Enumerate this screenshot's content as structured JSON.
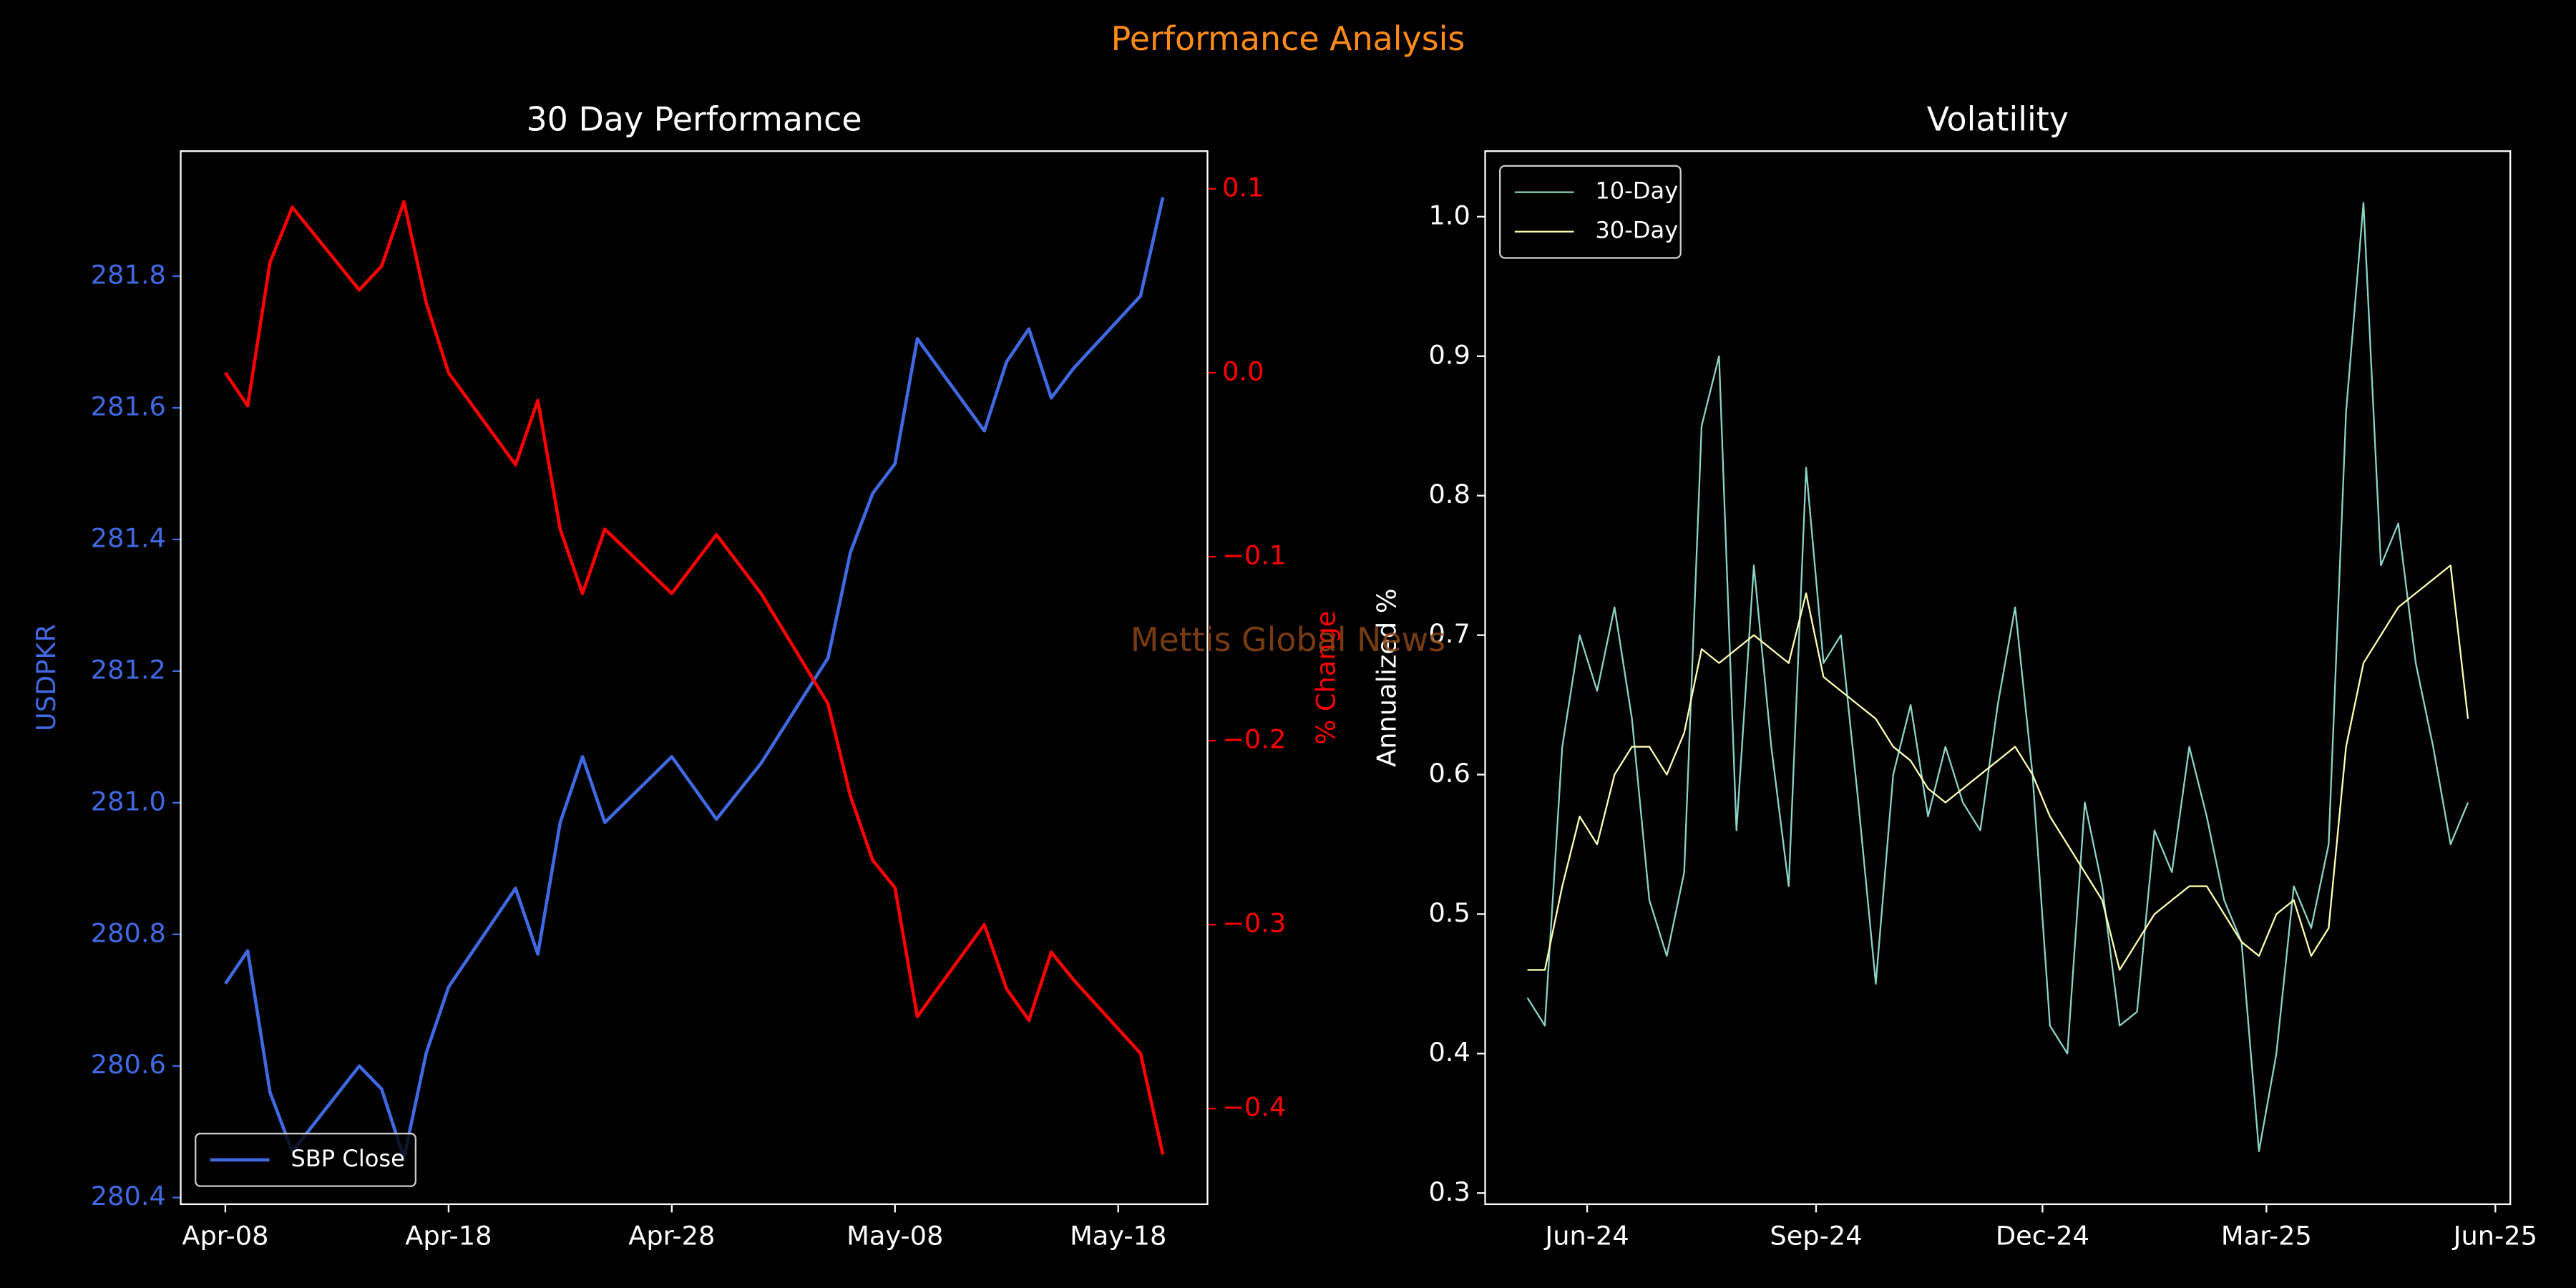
{
  "title": "Performance Analysis",
  "watermark": "Mettis Global News",
  "chart_data": [
    {
      "type": "line",
      "title": "30 Day Performance",
      "ylabel": "USDPKR",
      "y2label": "% Change",
      "legend": "lower left",
      "x": [
        "Apr-08",
        "Apr-09",
        "Apr-10",
        "Apr-11",
        "Apr-14",
        "Apr-15",
        "Apr-16",
        "Apr-17",
        "Apr-18",
        "Apr-21",
        "Apr-22",
        "Apr-23",
        "Apr-24",
        "Apr-25",
        "Apr-28",
        "Apr-30",
        "May-02",
        "May-05",
        "May-06",
        "May-07",
        "May-08",
        "May-09",
        "May-12",
        "May-13",
        "May-14",
        "May-15",
        "May-16",
        "May-19",
        "May-20"
      ],
      "series": [
        {
          "name": "SBP Close",
          "color": "#4169e1",
          "values": [
            280.725,
            280.775,
            280.56,
            280.47,
            280.6,
            280.565,
            280.46,
            280.62,
            280.72,
            280.87,
            280.77,
            280.97,
            281.07,
            280.97,
            281.07,
            280.975,
            281.06,
            281.22,
            281.38,
            281.47,
            281.515,
            281.705,
            281.565,
            281.67,
            281.72,
            281.615,
            281.66,
            281.77,
            281.92
          ]
        },
        {
          "color": "#ff0000",
          "axis": "y2",
          "values": [
            0.0,
            -0.018,
            0.06,
            0.09,
            0.045,
            0.058,
            0.093,
            0.038,
            0.0,
            -0.05,
            -0.015,
            -0.085,
            -0.12,
            -0.085,
            -0.12,
            -0.088,
            -0.12,
            -0.18,
            -0.23,
            -0.265,
            -0.28,
            -0.35,
            -0.3,
            -0.335,
            -0.352,
            -0.315,
            -0.33,
            -0.37,
            -0.425
          ]
        }
      ],
      "xlim": [
        "Apr-06",
        "May-22"
      ],
      "xticks": [
        "Apr-08",
        "Apr-18",
        "Apr-28",
        "May-08",
        "May-18"
      ],
      "ylim": [
        280.39,
        281.99
      ],
      "yticks": [
        280.4,
        280.6,
        280.8,
        {
          "value": 281,
          "label": "281.0"
        },
        281.2,
        281.4,
        281.6,
        281.8
      ],
      "y2lim": [
        -0.452,
        0.1205
      ],
      "y2ticks": [
        0.1,
        {
          "value": 0,
          "label": "0.0"
        },
        {
          "value": -0.1,
          "label": "−0.1"
        },
        {
          "value": -0.2,
          "label": "−0.2"
        },
        {
          "value": -0.3,
          "label": "−0.3"
        },
        {
          "value": -0.4,
          "label": "−0.4"
        }
      ]
    },
    {
      "type": "line",
      "title": "Volatility",
      "ylabel": "Annualized %",
      "legend": "upper left",
      "x": [
        "2024-05-08",
        "2024-05-15",
        "2024-05-22",
        "2024-05-29",
        "2024-06-05",
        "2024-06-12",
        "2024-06-19",
        "2024-06-26",
        "2024-07-03",
        "2024-07-10",
        "2024-07-17",
        "2024-07-24",
        "2024-07-31",
        "2024-08-07",
        "2024-08-14",
        "2024-08-21",
        "2024-08-28",
        "2024-09-04",
        "2024-09-11",
        "2024-09-18",
        "2024-09-25",
        "2024-10-02",
        "2024-10-09",
        "2024-10-16",
        "2024-10-23",
        "2024-10-30",
        "2024-11-06",
        "2024-11-13",
        "2024-11-20",
        "2024-11-27",
        "2024-12-04",
        "2024-12-11",
        "2024-12-18",
        "2024-12-25",
        "2025-01-01",
        "2025-01-08",
        "2025-01-15",
        "2025-01-22",
        "2025-01-29",
        "2025-02-05",
        "2025-02-12",
        "2025-02-19",
        "2025-02-26",
        "2025-03-05",
        "2025-03-12",
        "2025-03-19",
        "2025-03-26",
        "2025-04-02",
        "2025-04-09",
        "2025-04-16",
        "2025-04-23",
        "2025-04-30",
        "2025-05-07",
        "2025-05-14",
        "2025-05-21"
      ],
      "series": [
        {
          "name": "10-Day",
          "color": "#8dd3c7",
          "values": [
            0.44,
            0.42,
            0.62,
            0.7,
            0.66,
            0.72,
            0.64,
            0.51,
            0.47,
            0.53,
            0.85,
            0.9,
            0.56,
            0.75,
            0.62,
            0.52,
            0.82,
            0.68,
            0.7,
            0.58,
            0.45,
            0.6,
            0.65,
            0.57,
            0.62,
            0.58,
            0.56,
            0.65,
            0.72,
            0.6,
            0.42,
            0.4,
            0.58,
            0.52,
            0.42,
            0.43,
            0.56,
            0.53,
            0.62,
            0.57,
            0.51,
            0.48,
            0.33,
            0.4,
            0.52,
            0.49,
            0.55,
            0.86,
            1.01,
            0.75,
            0.78,
            0.68,
            0.62,
            0.55,
            0.58
          ]
        },
        {
          "name": "30-Day",
          "color": "#ffffb3",
          "values": [
            0.46,
            0.46,
            0.52,
            0.57,
            0.55,
            0.6,
            0.62,
            0.62,
            0.6,
            0.63,
            0.69,
            0.68,
            0.69,
            0.7,
            0.69,
            0.68,
            0.73,
            0.67,
            0.66,
            0.65,
            0.64,
            0.62,
            0.61,
            0.59,
            0.58,
            0.59,
            0.6,
            0.61,
            0.62,
            0.6,
            0.57,
            0.55,
            0.53,
            0.51,
            0.46,
            0.48,
            0.5,
            0.51,
            0.52,
            0.52,
            0.5,
            0.48,
            0.47,
            0.5,
            0.51,
            0.47,
            0.49,
            0.62,
            0.68,
            0.7,
            0.72,
            0.73,
            0.74,
            0.75,
            0.64
          ]
        }
      ],
      "xlim": [
        "2024-04-21",
        "2025-06-07"
      ],
      "xticks": [
        {
          "value": "2024-06",
          "label": "Jun-24"
        },
        {
          "value": "2024-09",
          "label": "Sep-24"
        },
        {
          "value": "2024-12",
          "label": "Dec-24"
        },
        {
          "value": "2025-03",
          "label": "Mar-25"
        },
        {
          "value": "2025-06",
          "label": "Jun-25"
        }
      ],
      "ylim": [
        0.292,
        1.047
      ],
      "yticks": [
        0.3,
        0.4,
        0.5,
        0.6,
        0.7,
        0.8,
        0.9,
        {
          "value": 1,
          "label": "1.0"
        }
      ]
    }
  ]
}
